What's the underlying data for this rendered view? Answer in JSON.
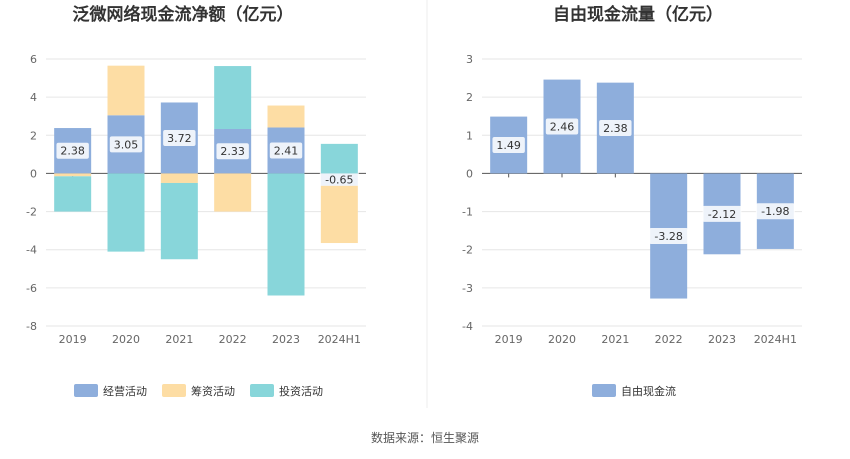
{
  "chart_data": [
    {
      "type": "bar",
      "stacked": true,
      "title": "泛微网络现金流净额（亿元）",
      "categories": [
        "2019",
        "2020",
        "2021",
        "2022",
        "2023",
        "2024H1"
      ],
      "ylim": [
        -8,
        6
      ],
      "yticks": [
        6,
        4,
        2,
        0,
        -2,
        -4,
        -6,
        -8
      ],
      "grid": true,
      "legend_position": "bottom",
      "series": [
        {
          "name": "经营活动",
          "color": "#8eaedc",
          "values": [
            2.38,
            3.05,
            3.72,
            2.33,
            2.41,
            -0.65
          ],
          "show_labels": true
        },
        {
          "name": "筹资活动",
          "color": "#fddda4",
          "values": [
            -0.15,
            2.6,
            -0.5,
            -2.0,
            1.15,
            -3.0
          ],
          "show_labels": false
        },
        {
          "name": "投资活动",
          "color": "#88d6da",
          "values": [
            -1.85,
            -4.1,
            -4.0,
            3.3,
            -6.4,
            1.55
          ],
          "show_labels": false
        }
      ]
    },
    {
      "type": "bar",
      "title": "自由现金流量（亿元）",
      "categories": [
        "2019",
        "2020",
        "2021",
        "2022",
        "2023",
        "2024H1"
      ],
      "ylim": [
        -4,
        3
      ],
      "yticks": [
        3,
        2,
        1,
        0,
        -1,
        -2,
        -3,
        -4
      ],
      "grid": true,
      "legend_position": "bottom",
      "series": [
        {
          "name": "自由现金流",
          "color": "#8eaedc",
          "values": [
            1.49,
            2.46,
            2.38,
            -3.28,
            -2.12,
            -1.98
          ],
          "show_labels": true
        }
      ]
    }
  ],
  "source": "数据来源：恒生聚源"
}
